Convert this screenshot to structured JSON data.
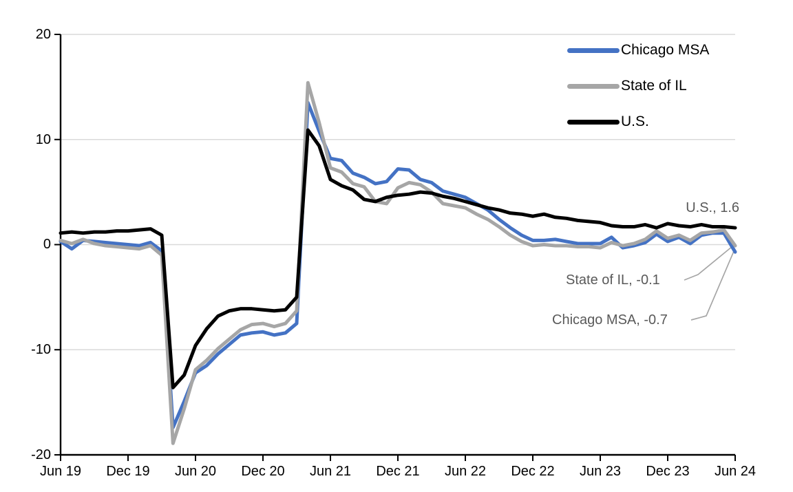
{
  "chart_data": {
    "type": "line",
    "x_unit": "month",
    "months": [
      "Jun 2019",
      "Jul 2019",
      "Aug 2019",
      "Sep 2019",
      "Oct 2019",
      "Nov 2019",
      "Dec 2019",
      "Jan 2020",
      "Feb 2020",
      "Mar 2020",
      "Apr 2020",
      "May 2020",
      "Jun 2020",
      "Jul 2020",
      "Aug 2020",
      "Sep 2020",
      "Oct 2020",
      "Nov 2020",
      "Dec 2020",
      "Jan 2021",
      "Feb 2021",
      "Mar 2021",
      "Apr 2021",
      "May 2021",
      "Jun 2021",
      "Jul 2021",
      "Aug 2021",
      "Sep 2021",
      "Oct 2021",
      "Nov 2021",
      "Dec 2021",
      "Jan 2022",
      "Feb 2022",
      "Mar 2022",
      "Apr 2022",
      "May 2022",
      "Jun 2022",
      "Jul 2022",
      "Aug 2022",
      "Sep 2022",
      "Oct 2022",
      "Nov 2022",
      "Dec 2022",
      "Jan 2023",
      "Feb 2023",
      "Mar 2023",
      "Apr 2023",
      "May 2023",
      "Jun 2023",
      "Jul 2023",
      "Aug 2023",
      "Sep 2023",
      "Oct 2023",
      "Nov 2023",
      "Dec 2023",
      "Jan 2024",
      "Feb 2024",
      "Mar 2024",
      "Apr 2024",
      "May 2024",
      "Jun 2024"
    ],
    "series": [
      {
        "name": "Chicago MSA",
        "color": "#4472C4",
        "end_label": "Chicago MSA, -0.7",
        "end_value": -0.7,
        "values": [
          0.3,
          -0.4,
          0.4,
          0.3,
          0.2,
          0.1,
          0.0,
          -0.1,
          0.2,
          -0.6,
          -17.4,
          -14.9,
          -12.2,
          -11.5,
          -10.4,
          -9.5,
          -8.6,
          -8.4,
          -8.3,
          -8.6,
          -8.4,
          -7.5,
          13.5,
          10.8,
          8.2,
          8.0,
          6.8,
          6.4,
          5.8,
          6.0,
          7.2,
          7.1,
          6.2,
          5.9,
          5.1,
          4.8,
          4.5,
          3.9,
          3.3,
          2.4,
          1.6,
          0.9,
          0.4,
          0.4,
          0.5,
          0.3,
          0.1,
          0.1,
          0.1,
          0.7,
          -0.3,
          -0.1,
          0.2,
          1.0,
          0.3,
          0.7,
          0.1,
          0.9,
          1.1,
          1.1,
          -0.7
        ]
      },
      {
        "name": "State of IL",
        "color": "#A6A6A6",
        "end_label": "State of IL, -0.1",
        "end_value": -0.1,
        "values": [
          0.4,
          0.1,
          0.5,
          0.1,
          -0.1,
          -0.2,
          -0.3,
          -0.4,
          -0.1,
          -1.0,
          -18.9,
          -15.6,
          -11.9,
          -11.0,
          -9.9,
          -9.0,
          -8.1,
          -7.6,
          -7.5,
          -7.8,
          -7.5,
          -6.3,
          15.4,
          11.6,
          7.3,
          6.9,
          5.8,
          5.5,
          4.1,
          3.9,
          5.4,
          5.9,
          5.7,
          5.0,
          3.9,
          3.7,
          3.5,
          2.9,
          2.4,
          1.7,
          0.9,
          0.3,
          -0.1,
          0.0,
          -0.1,
          -0.1,
          -0.2,
          -0.2,
          -0.3,
          0.2,
          -0.1,
          0.1,
          0.5,
          1.3,
          0.6,
          0.9,
          0.4,
          1.1,
          1.2,
          1.4,
          -0.1
        ]
      },
      {
        "name": "U.S.",
        "color": "#000000",
        "end_label": "U.S., 1.6",
        "end_value": 1.6,
        "values": [
          1.1,
          1.2,
          1.1,
          1.2,
          1.2,
          1.3,
          1.3,
          1.4,
          1.5,
          0.9,
          -13.6,
          -12.4,
          -9.6,
          -8.0,
          -6.8,
          -6.3,
          -6.1,
          -6.1,
          -6.2,
          -6.3,
          -6.2,
          -5.0,
          10.9,
          9.4,
          6.2,
          5.6,
          5.2,
          4.3,
          4.1,
          4.5,
          4.7,
          4.8,
          5.0,
          4.9,
          4.6,
          4.4,
          4.1,
          3.8,
          3.5,
          3.3,
          3.0,
          2.9,
          2.7,
          2.9,
          2.6,
          2.5,
          2.3,
          2.2,
          2.1,
          1.8,
          1.7,
          1.7,
          1.9,
          1.6,
          2.0,
          1.8,
          1.7,
          1.9,
          1.7,
          1.7,
          1.6
        ]
      }
    ],
    "x_tick_labels": [
      "Jun 19",
      "Dec 19",
      "Jun 20",
      "Dec 20",
      "Jun 21",
      "Dec 21",
      "Jun 22",
      "Dec 22",
      "Jun 23",
      "Dec 23",
      "Jun 24"
    ],
    "y_tick_labels": [
      "20",
      "10",
      "0",
      "-10",
      "-20"
    ],
    "y_ticks": [
      20,
      10,
      0,
      -10,
      -20
    ],
    "ylim": [
      -20,
      20
    ],
    "gridlines_at": [
      20,
      10,
      0,
      -10
    ],
    "legend_position": "top-right-inside",
    "grid_color": "#D9D9D9",
    "annotation_text_color": "#595959",
    "leader_line_color": "#A6A6A6",
    "annotations": [
      {
        "id": "us",
        "text": "U.S., 1.6"
      },
      {
        "id": "il",
        "text": "State of IL, -0.1"
      },
      {
        "id": "chicago",
        "text": "Chicago MSA, -0.7"
      }
    ]
  }
}
